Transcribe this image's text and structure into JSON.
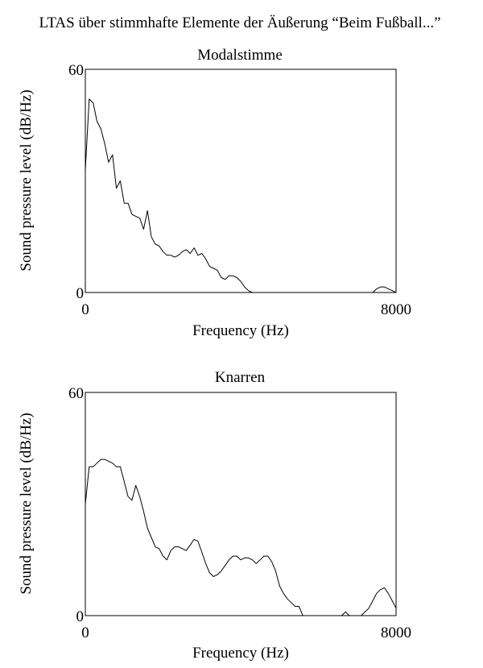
{
  "figure": {
    "title": "LTAS über stimmhafte Elemente der Äußerung “Beim Fußball...”"
  },
  "chart_data": [
    {
      "type": "line",
      "title": "Modalstimme",
      "xlabel": "Frequency (Hz)",
      "ylabel": "Sound pressure level (dB/Hz)",
      "xlim": [
        0,
        8000
      ],
      "ylim": [
        0,
        60
      ],
      "x_ticks": [
        "0",
        "8000"
      ],
      "y_ticks": [
        "0",
        "60"
      ],
      "grid": false,
      "series": [
        {
          "x": [
            0,
            100,
            200,
            300,
            400,
            500,
            600,
            700,
            800,
            900,
            1000,
            1100,
            1200,
            1300,
            1400,
            1500,
            1600,
            1700,
            1800,
            1900,
            2000,
            2100,
            2200,
            2300,
            2400,
            2500,
            2600,
            2700,
            2800,
            2900,
            3000,
            3100,
            3200,
            3300,
            3400,
            3500,
            3600,
            3700,
            3800,
            3900,
            4000,
            4100,
            4200,
            4300,
            4400,
            4500,
            4600,
            4700,
            4800,
            7300,
            7400,
            7500,
            7600,
            7700,
            7800,
            7900,
            8000
          ],
          "y": [
            33,
            52,
            51,
            46,
            44,
            40,
            35,
            37,
            28,
            30,
            24,
            24,
            21,
            20.5,
            20,
            17,
            22,
            15,
            13,
            12.5,
            11,
            10,
            10,
            9.5,
            10,
            11,
            11.5,
            10.5,
            12,
            10,
            10.5,
            9,
            7,
            6.5,
            6,
            4,
            3.5,
            4.5,
            4.5,
            4,
            3,
            1.5,
            0.5,
            0,
            0,
            0,
            0,
            0,
            0,
            0,
            0,
            1,
            1.5,
            1.5,
            1,
            0.5,
            0
          ]
        }
      ]
    },
    {
      "type": "line",
      "title": "Knarren",
      "xlabel": "Frequency (Hz)",
      "ylabel": "Sound pressure level (dB/Hz)",
      "xlim": [
        0,
        8000
      ],
      "ylim": [
        0,
        60
      ],
      "x_ticks": [
        "0",
        "8000"
      ],
      "y_ticks": [
        "0",
        "60"
      ],
      "grid": false,
      "series": [
        {
          "x": [
            0,
            100,
            200,
            300,
            400,
            500,
            600,
            700,
            800,
            900,
            1000,
            1100,
            1200,
            1300,
            1400,
            1500,
            1600,
            1700,
            1800,
            1900,
            2000,
            2100,
            2200,
            2300,
            2400,
            2500,
            2600,
            2700,
            2800,
            2900,
            3000,
            3100,
            3200,
            3300,
            3400,
            3500,
            3600,
            3700,
            3800,
            3900,
            4000,
            4100,
            4200,
            4300,
            4400,
            4500,
            4600,
            4700,
            4800,
            4900,
            5000,
            5100,
            5200,
            5300,
            5400,
            5500,
            5600,
            6500,
            6600,
            6700,
            6800,
            7000,
            7100,
            7200,
            7300,
            7400,
            7500,
            7600,
            7700,
            7800,
            7900,
            8000
          ],
          "y": [
            30,
            40,
            40,
            41,
            42,
            42,
            41.5,
            41,
            40,
            40,
            36,
            32,
            31,
            35,
            32,
            28,
            23.5,
            21,
            18.5,
            18,
            16,
            15,
            17.5,
            18.5,
            18.5,
            18,
            17.5,
            19,
            20.5,
            20,
            17,
            14,
            11.5,
            10.5,
            11,
            12,
            13.5,
            15,
            16,
            16,
            15,
            15.5,
            15.5,
            15,
            14,
            15,
            16,
            16,
            14.5,
            12,
            8,
            6,
            4.5,
            3.5,
            2.5,
            2.5,
            0,
            0,
            0,
            1,
            0,
            0,
            0,
            1,
            2,
            4,
            6,
            7,
            7.5,
            6,
            4,
            2
          ]
        }
      ]
    }
  ]
}
